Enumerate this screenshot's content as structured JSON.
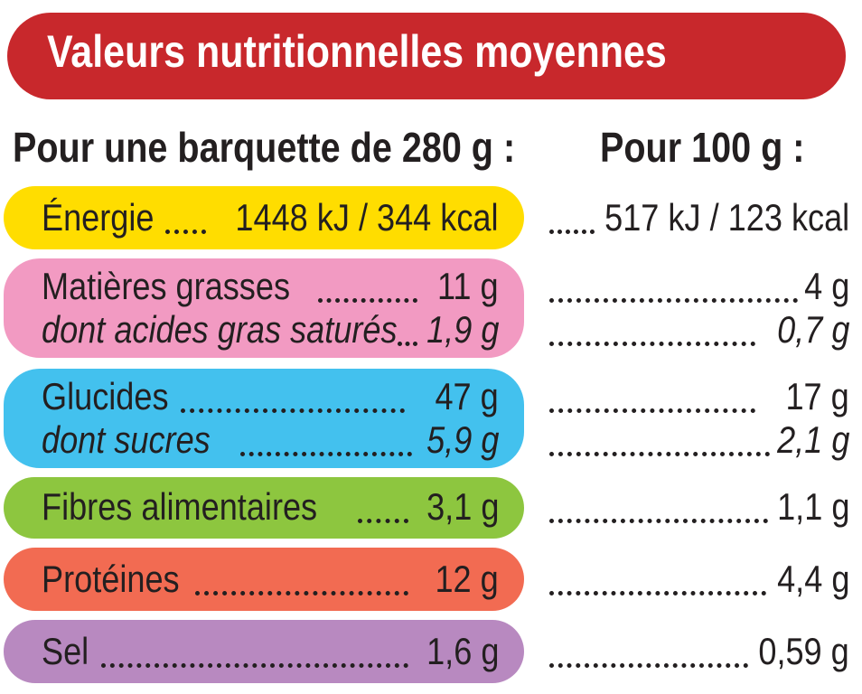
{
  "title": "Valeurs nutritionnelles moyennes",
  "headers": {
    "per_tray": "Pour une barquette de 280 g :",
    "per_100g": "Pour 100 g :"
  },
  "colors": {
    "title_bg": "#c8282c",
    "energy": "#ffdd00",
    "fat": "#f29ac2",
    "carbs": "#43c1ee",
    "fibre": "#8dc63f",
    "protein": "#f26b52",
    "salt": "#b889c0"
  },
  "rows": {
    "energy": {
      "label": "Énergie",
      "per_tray": "1448 kJ / 344 kcal",
      "per_100g": "517 kJ / 123 kcal"
    },
    "fat": {
      "label": "Matières grasses",
      "per_tray": "11 g",
      "per_100g": "4 g"
    },
    "saturated": {
      "label": "dont acides gras saturés",
      "per_tray": "1,9 g",
      "per_100g": "0,7 g"
    },
    "carbs": {
      "label": "Glucides",
      "per_tray": "47 g",
      "per_100g": "17 g"
    },
    "sugars": {
      "label": "dont sucres",
      "per_tray": "5,9 g",
      "per_100g": "2,1 g"
    },
    "fibre": {
      "label": "Fibres alimentaires",
      "per_tray": "3,1 g",
      "per_100g": "1,1 g"
    },
    "protein": {
      "label": "Protéines",
      "per_tray": "12 g",
      "per_100g": "4,4 g"
    },
    "salt": {
      "label": "Sel",
      "per_tray": "1,6 g",
      "per_100g": "0,59 g"
    }
  }
}
